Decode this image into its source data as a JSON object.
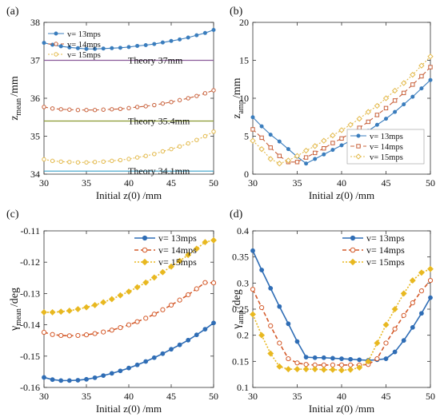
{
  "chart_data": [
    {
      "type": "line",
      "panel_label": "(a)",
      "xlabel": "Initial z(0)  /mm",
      "ylabel_main": "z",
      "ylabel_sub": "mean",
      "ylabel_unit": "/mm",
      "xlim": [
        30,
        50
      ],
      "ylim": [
        34,
        38
      ],
      "xticks": [
        "30",
        "35",
        "40",
        "45",
        "50"
      ],
      "yticks": [
        "34",
        "35",
        "36",
        "37",
        "38"
      ],
      "legend_position": "top-left",
      "x": [
        30,
        31,
        32,
        33,
        34,
        35,
        36,
        37,
        38,
        39,
        40,
        41,
        42,
        43,
        44,
        45,
        46,
        47,
        48,
        49,
        50
      ],
      "series": [
        {
          "name": "v= 13mps",
          "color": "#3a7dbd",
          "marker": "filled-circle",
          "dash": "solid",
          "values": [
            37.46,
            37.41,
            37.37,
            37.34,
            37.32,
            37.3,
            37.3,
            37.31,
            37.32,
            37.33,
            37.35,
            37.38,
            37.4,
            37.43,
            37.47,
            37.51,
            37.55,
            37.6,
            37.66,
            37.72,
            37.8
          ]
        },
        {
          "name": "v= 14mps",
          "color": "#c8603a",
          "marker": "open-circle",
          "dash": "dashed",
          "values": [
            35.77,
            35.73,
            35.71,
            35.7,
            35.69,
            35.69,
            35.69,
            35.7,
            35.71,
            35.72,
            35.74,
            35.77,
            35.79,
            35.82,
            35.86,
            35.9,
            35.95,
            36.0,
            36.06,
            36.13,
            36.21
          ]
        },
        {
          "name": "v= 15mps",
          "color": "#e3b94a",
          "marker": "open-circle",
          "dash": "dotted",
          "values": [
            34.39,
            34.35,
            34.33,
            34.32,
            34.31,
            34.31,
            34.32,
            34.33,
            34.35,
            34.37,
            34.4,
            34.44,
            34.48,
            34.53,
            34.6,
            34.66,
            34.73,
            34.81,
            34.9,
            35.0,
            35.12
          ]
        }
      ],
      "reference_lines": [
        {
          "label": "Theory 37mm",
          "y": 37.0,
          "color": "#8a5a9a"
        },
        {
          "label": "Theory 35.4mm",
          "y": 35.4,
          "color": "#8a9a30"
        },
        {
          "label": "Theory 34.1mm",
          "y": 34.08,
          "color": "#3aa0c8"
        }
      ]
    },
    {
      "type": "line",
      "panel_label": "(b)",
      "xlabel": "Initial z(0)  /mm",
      "ylabel_main": "z",
      "ylabel_sub": "amp",
      "ylabel_unit": "/mm",
      "xlim": [
        30,
        50
      ],
      "ylim": [
        0,
        20
      ],
      "xticks": [
        "30",
        "35",
        "40",
        "45",
        "50"
      ],
      "yticks": [
        "0",
        "5",
        "10",
        "15",
        "20"
      ],
      "legend_position": "bottom-right",
      "x": [
        30,
        31,
        32,
        33,
        34,
        35,
        36,
        37,
        38,
        39,
        40,
        41,
        42,
        43,
        44,
        45,
        46,
        47,
        48,
        49,
        50
      ],
      "series": [
        {
          "name": "v= 13mps",
          "color": "#3a7dbd",
          "marker": "filled-circle",
          "dash": "solid",
          "values": [
            7.5,
            6.3,
            5.2,
            4.3,
            3.3,
            2.3,
            1.4,
            2.0,
            2.6,
            3.2,
            3.8,
            4.4,
            5.0,
            5.7,
            6.5,
            7.3,
            8.2,
            9.2,
            10.2,
            11.3,
            12.4
          ]
        },
        {
          "name": "v= 14mps",
          "color": "#c8603a",
          "marker": "open-square",
          "dash": "dashed",
          "values": [
            5.9,
            4.8,
            3.5,
            2.4,
            1.6,
            1.6,
            2.2,
            2.8,
            3.4,
            4.1,
            4.7,
            5.4,
            6.1,
            6.9,
            7.8,
            8.7,
            9.7,
            10.7,
            11.8,
            12.9,
            14.1
          ]
        },
        {
          "name": "v= 15mps",
          "color": "#e3b94a",
          "marker": "open-diamond",
          "dash": "dotted",
          "values": [
            4.4,
            3.3,
            2.0,
            1.4,
            1.8,
            2.4,
            3.1,
            3.7,
            4.4,
            5.1,
            5.8,
            6.5,
            7.3,
            8.2,
            9.0,
            10.0,
            11.0,
            12.0,
            13.1,
            14.3,
            15.5
          ]
        }
      ]
    },
    {
      "type": "line",
      "panel_label": "(c)",
      "xlabel": "Initial z(0)  /mm",
      "ylabel_main": "γ",
      "ylabel_sub": "mean",
      "ylabel_unit": "/deg",
      "xlim": [
        30,
        50
      ],
      "ylim": [
        -0.16,
        -0.11
      ],
      "xticks": [
        "30",
        "35",
        "40",
        "45",
        "50"
      ],
      "yticks": [
        "-0.16",
        "-0.15",
        "-0.14",
        "-0.13",
        "-0.12",
        "-0.11"
      ],
      "legend_position": "top-left",
      "x": [
        30,
        31,
        32,
        33,
        34,
        35,
        36,
        37,
        38,
        39,
        40,
        41,
        42,
        43,
        44,
        45,
        46,
        47,
        48,
        49,
        50
      ],
      "series": [
        {
          "name": "v= 13mps",
          "color": "#2f6db5",
          "marker": "filled-circle",
          "dash": "solid",
          "values": [
            -0.1568,
            -0.1575,
            -0.1578,
            -0.1578,
            -0.1577,
            -0.1574,
            -0.1569,
            -0.1562,
            -0.1555,
            -0.1547,
            -0.1538,
            -0.1528,
            -0.1517,
            -0.1505,
            -0.1492,
            -0.1478,
            -0.1464,
            -0.1449,
            -0.1432,
            -0.1414,
            -0.1394
          ]
        },
        {
          "name": "v= 14mps",
          "color": "#d45a2a",
          "marker": "open-circle",
          "dash": "dashed",
          "values": [
            -0.1424,
            -0.1431,
            -0.1434,
            -0.1435,
            -0.1434,
            -0.1432,
            -0.1428,
            -0.1423,
            -0.1417,
            -0.1409,
            -0.14,
            -0.139,
            -0.1379,
            -0.1366,
            -0.1352,
            -0.1337,
            -0.1321,
            -0.1304,
            -0.1285,
            -0.1265,
            -0.1266
          ]
        },
        {
          "name": "v= 15mps",
          "color": "#e8b820",
          "marker": "filled-diamond",
          "dash": "dotted",
          "values": [
            -0.136,
            -0.136,
            -0.1358,
            -0.1355,
            -0.135,
            -0.1344,
            -0.1337,
            -0.1328,
            -0.1318,
            -0.1306,
            -0.1294,
            -0.128,
            -0.1265,
            -0.1249,
            -0.1232,
            -0.1214,
            -0.1196,
            -0.1177,
            -0.1157,
            -0.1136,
            -0.113
          ]
        }
      ]
    },
    {
      "type": "line",
      "panel_label": "(d)",
      "xlabel": "Initial z(0)  /mm",
      "ylabel_main": "γ",
      "ylabel_sub": "amp",
      "ylabel_unit": "/deg",
      "xlim": [
        30,
        50
      ],
      "ylim": [
        0.1,
        0.4
      ],
      "xticks": [
        "30",
        "35",
        "40",
        "45",
        "50"
      ],
      "yticks": [
        "0.1",
        "0.15",
        "0.2",
        "0.25",
        "0.3",
        "0.35",
        "0.4"
      ],
      "legend_position": "top-right",
      "x": [
        30,
        31,
        32,
        33,
        34,
        35,
        36,
        37,
        38,
        39,
        40,
        41,
        42,
        43,
        44,
        45,
        46,
        47,
        48,
        49,
        50
      ],
      "series": [
        {
          "name": "v= 13mps",
          "color": "#2f6db5",
          "marker": "filled-circle",
          "dash": "solid",
          "values": [
            0.362,
            0.325,
            0.29,
            0.255,
            0.222,
            0.188,
            0.158,
            0.157,
            0.157,
            0.156,
            0.155,
            0.154,
            0.153,
            0.152,
            0.153,
            0.155,
            0.168,
            0.19,
            0.215,
            0.242,
            0.272
          ]
        },
        {
          "name": "v= 14mps",
          "color": "#d45a2a",
          "marker": "open-circle",
          "dash": "dashed",
          "values": [
            0.288,
            0.253,
            0.218,
            0.185,
            0.155,
            0.147,
            0.144,
            0.143,
            0.143,
            0.143,
            0.143,
            0.143,
            0.143,
            0.144,
            0.155,
            0.185,
            0.212,
            0.238,
            0.262,
            0.285,
            0.305
          ]
        },
        {
          "name": "v= 15mps",
          "color": "#e8b820",
          "marker": "filled-diamond",
          "dash": "dotted",
          "values": [
            0.24,
            0.2,
            0.165,
            0.14,
            0.135,
            0.135,
            0.135,
            0.135,
            0.134,
            0.134,
            0.133,
            0.134,
            0.138,
            0.15,
            0.185,
            0.22,
            0.25,
            0.28,
            0.305,
            0.32,
            0.327
          ]
        }
      ]
    }
  ]
}
